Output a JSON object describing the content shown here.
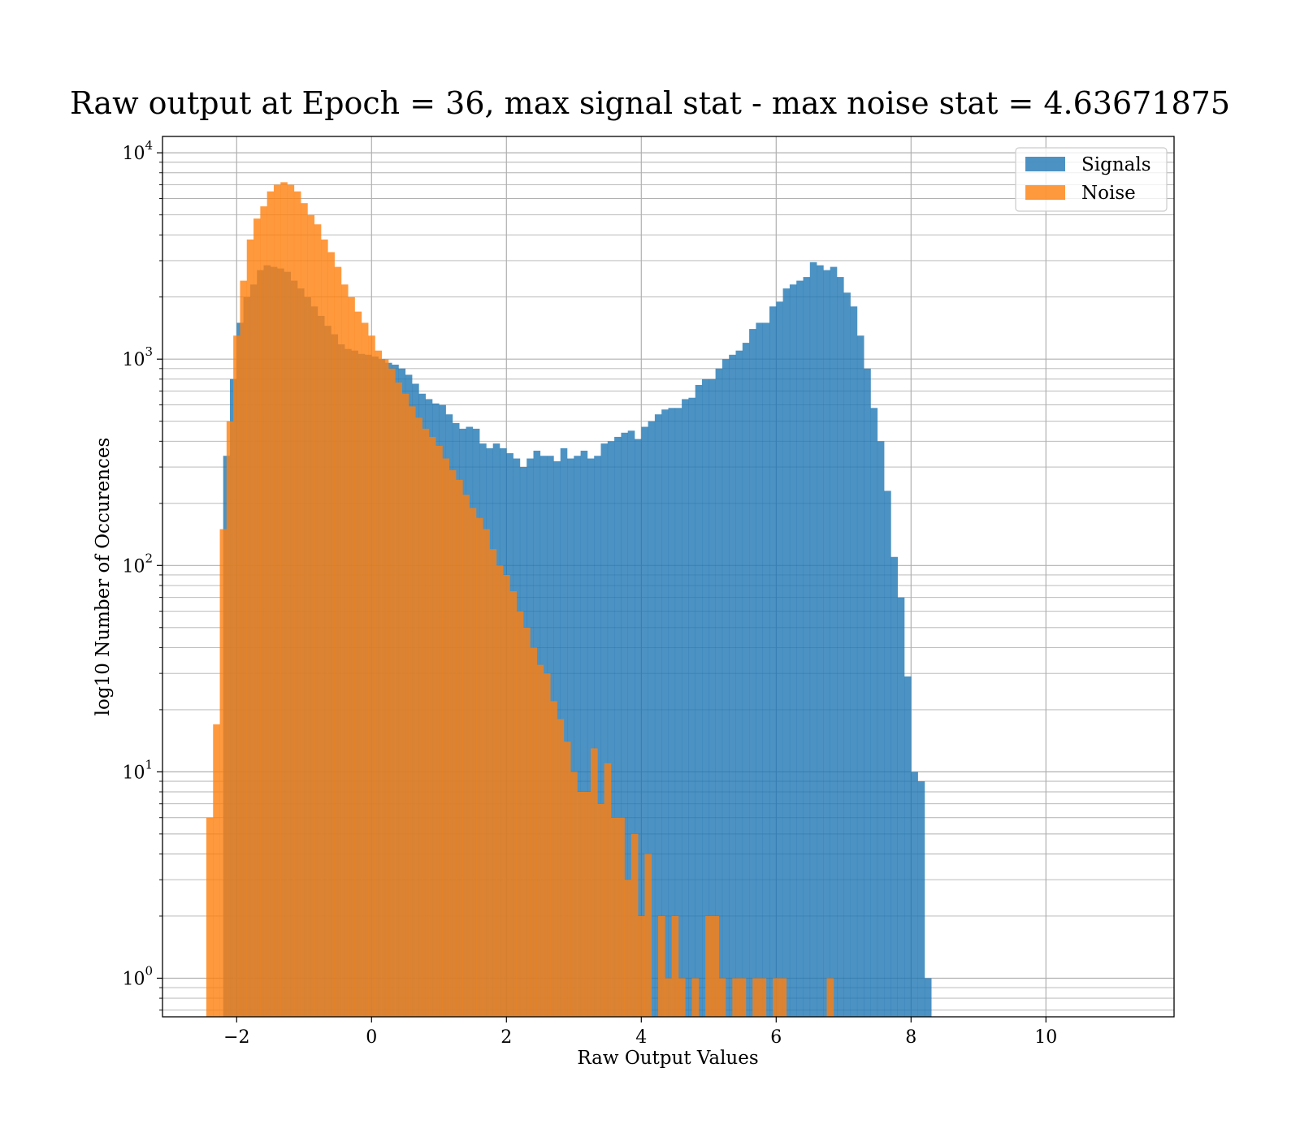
{
  "chart_data": {
    "type": "bar",
    "title": "Raw output at Epoch = 36, max signal stat - max noise stat = 4.63671875",
    "xlabel": "Raw Output Values",
    "ylabel": "log10 Number of Occurences",
    "x_scale": "linear",
    "y_scale": "log",
    "xlim": [
      -3.1,
      11.9
    ],
    "ylim": [
      0.65,
      12000
    ],
    "x_ticks": [
      -2,
      0,
      2,
      4,
      6,
      8,
      10
    ],
    "x_tick_labels": [
      "−2",
      "0",
      "2",
      "4",
      "6",
      "8",
      "10"
    ],
    "y_ticks": [
      1,
      10,
      100,
      1000,
      10000
    ],
    "y_tick_base": "10",
    "y_tick_exponents": [
      "0",
      "1",
      "2",
      "3",
      "4"
    ],
    "grid": true,
    "legend_position": "top-right",
    "series": [
      {
        "name": "Signals",
        "color": "#1f77b4",
        "opacity": 0.8,
        "bin_start": -2.2,
        "bin_width": 0.1,
        "values": [
          340,
          800,
          1500,
          2000,
          2300,
          2700,
          2850,
          2800,
          2750,
          2650,
          2400,
          2200,
          2000,
          1800,
          1620,
          1450,
          1320,
          1180,
          1120,
          1100,
          1060,
          1050,
          1030,
          1000,
          960,
          940,
          900,
          840,
          760,
          680,
          640,
          610,
          600,
          540,
          490,
          460,
          470,
          460,
          390,
          370,
          390,
          370,
          350,
          330,
          300,
          330,
          360,
          340,
          340,
          320,
          370,
          330,
          340,
          360,
          330,
          340,
          390,
          400,
          420,
          440,
          450,
          410,
          470,
          500,
          540,
          570,
          580,
          580,
          640,
          650,
          750,
          800,
          800,
          900,
          1000,
          1050,
          1100,
          1200,
          1400,
          1500,
          1500,
          1800,
          1900,
          2200,
          2300,
          2400,
          2500,
          2950,
          2850,
          2700,
          2800,
          2500,
          2100,
          1800,
          1300,
          900,
          580,
          400,
          230,
          110,
          70,
          29,
          10,
          9,
          1
        ]
      },
      {
        "name": "Noise",
        "color": "#ff7f0e",
        "opacity": 0.8,
        "bin_start": -2.45,
        "bin_width": 0.1,
        "values": [
          6,
          17,
          150,
          500,
          1300,
          2400,
          3800,
          4800,
          5500,
          6500,
          7000,
          7200,
          7000,
          6500,
          5700,
          5000,
          4500,
          3800,
          3300,
          2800,
          2300,
          2000,
          1700,
          1500,
          1300,
          1100,
          1000,
          900,
          770,
          680,
          590,
          520,
          460,
          420,
          380,
          330,
          290,
          260,
          220,
          190,
          170,
          150,
          120,
          100,
          90,
          75,
          60,
          50,
          40,
          33,
          30,
          22,
          18,
          14,
          10,
          8,
          8,
          13,
          7,
          11,
          6,
          6,
          3,
          5,
          2,
          4,
          0,
          2,
          1,
          2,
          1,
          0,
          1,
          0,
          2,
          2,
          1,
          0,
          1,
          1,
          0,
          1,
          1,
          0,
          1,
          1,
          0,
          0,
          0,
          0,
          0,
          0,
          1,
          0
        ]
      }
    ]
  }
}
